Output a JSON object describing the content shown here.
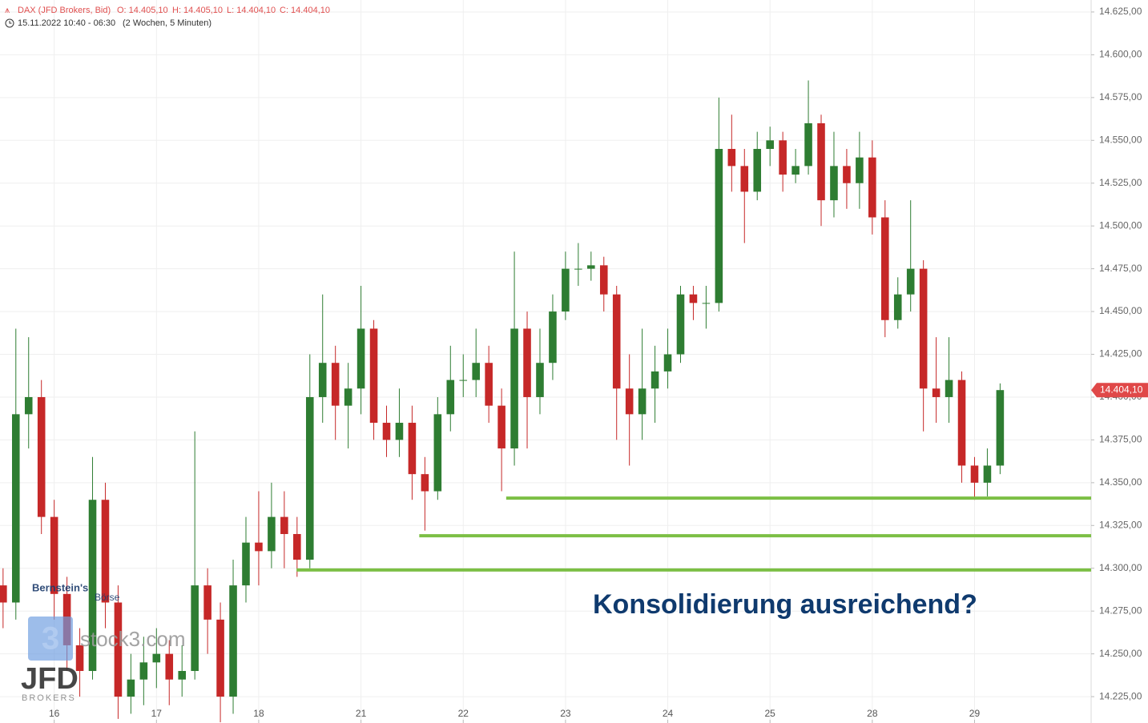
{
  "chart_data": {
    "type": "candlestick",
    "header": {
      "symbol": "DAX (JFD Brokers, Bid)",
      "open": "O: 14.405,10",
      "high": "H: 14.405,10",
      "low": "L: 14.404,10",
      "close": "C: 14.404,10",
      "range": "15.11.2022 10:40 - 06:30",
      "period": "(2 Wochen, 5 Minuten)"
    },
    "annotation": "Konsolidierung ausreichend?",
    "watermarks": {
      "bernstein": "Bernstein's",
      "boerse": "Börse",
      "stock3": "stock3.com",
      "stock3_icon": "3",
      "jfd": "JFD",
      "brokers": "BROKERS"
    },
    "last_price": {
      "value": 14404.1,
      "label": "14.404,10",
      "color": "#e04848"
    },
    "up_color": "#2e7d32",
    "down_color": "#c62828",
    "grid": true,
    "xlim": [
      -0.53,
      10.14
    ],
    "ylim": [
      14209.6,
      14632
    ],
    "xticks": [
      {
        "value": 0,
        "label": "16"
      },
      {
        "value": 1,
        "label": "17"
      },
      {
        "value": 2,
        "label": "18"
      },
      {
        "value": 3,
        "label": "21"
      },
      {
        "value": 4,
        "label": "22"
      },
      {
        "value": 5,
        "label": "23"
      },
      {
        "value": 6,
        "label": "24"
      },
      {
        "value": 7,
        "label": "25"
      },
      {
        "value": 8,
        "label": "28"
      },
      {
        "value": 9,
        "label": "29"
      }
    ],
    "yticks": [
      {
        "value": 14225,
        "label": "14.225,00"
      },
      {
        "value": 14250,
        "label": "14.250,00"
      },
      {
        "value": 14275,
        "label": "14.275,00"
      },
      {
        "value": 14300,
        "label": "14.300,00"
      },
      {
        "value": 14325,
        "label": "14.325,00"
      },
      {
        "value": 14350,
        "label": "14.350,00"
      },
      {
        "value": 14375,
        "label": "14.375,00"
      },
      {
        "value": 14400,
        "label": "14.400,00"
      },
      {
        "value": 14425,
        "label": "14.425,00"
      },
      {
        "value": 14450,
        "label": "14.450,00"
      },
      {
        "value": 14475,
        "label": "14.475,00"
      },
      {
        "value": 14500,
        "label": "14.500,00"
      },
      {
        "value": 14525,
        "label": "14.525,00"
      },
      {
        "value": 14550,
        "label": "14.550,00"
      },
      {
        "value": 14575,
        "label": "14.575,00"
      },
      {
        "value": 14600,
        "label": "14.600,00"
      },
      {
        "value": 14625,
        "label": "14.625,00"
      }
    ],
    "levels": {
      "color": "#7cbf45",
      "values": [
        14341,
        14319,
        14299
      ],
      "x_start": [
        4.42,
        3.57,
        2.37
      ]
    },
    "x": [
      -0.5,
      -0.375,
      -0.25,
      -0.125,
      0,
      0.125,
      0.25,
      0.375,
      0.5,
      0.625,
      0.75,
      0.875,
      1,
      1.125,
      1.25,
      1.375,
      1.5,
      1.625,
      1.75,
      1.875,
      2,
      2.125,
      2.25,
      2.375,
      2.5,
      2.625,
      2.75,
      2.875,
      3,
      3.125,
      3.25,
      3.375,
      3.5,
      3.625,
      3.75,
      3.875,
      4,
      4.125,
      4.25,
      4.375,
      4.5,
      4.625,
      4.75,
      4.875,
      5,
      5.125,
      5.25,
      5.375,
      5.5,
      5.625,
      5.75,
      5.875,
      6,
      6.125,
      6.25,
      6.375,
      6.5,
      6.625,
      6.75,
      6.875,
      7,
      7.125,
      7.25,
      7.375,
      7.5,
      7.625,
      7.75,
      7.875,
      8,
      8.125,
      8.25,
      8.375,
      8.5,
      8.625,
      8.75,
      8.875,
      9,
      9.125,
      9.25
    ],
    "open": [
      14290,
      14280,
      14390,
      14400,
      14330,
      14285,
      14255,
      14240,
      14340,
      14280,
      14225,
      14235,
      14245,
      14250,
      14235,
      14240,
      14290,
      14270,
      14225,
      14290,
      14315,
      14310,
      14330,
      14320,
      14305,
      14400,
      14420,
      14395,
      14405,
      14440,
      14385,
      14375,
      14385,
      14355,
      14345,
      14390,
      14410,
      14410,
      14420,
      14395,
      14370,
      14440,
      14400,
      14420,
      14450,
      14475,
      14475,
      14477,
      14460,
      14405,
      14390,
      14405,
      14415,
      14425,
      14460,
      14455,
      14455,
      14545,
      14535,
      14520,
      14545,
      14550,
      14530,
      14535,
      14560,
      14515,
      14535,
      14525,
      14540,
      14505,
      14445,
      14460,
      14475,
      14405,
      14400,
      14410,
      14360,
      14350,
      14360
    ],
    "high": [
      14300,
      14440,
      14435,
      14410,
      14340,
      14295,
      14265,
      14365,
      14350,
      14290,
      14250,
      14260,
      14265,
      14258,
      14255,
      14380,
      14300,
      14280,
      14305,
      14330,
      14345,
      14350,
      14345,
      14330,
      14425,
      14460,
      14430,
      14420,
      14465,
      14445,
      14395,
      14405,
      14395,
      14365,
      14400,
      14430,
      14425,
      14440,
      14430,
      14405,
      14485,
      14450,
      14440,
      14460,
      14485,
      14490,
      14485,
      14482,
      14465,
      14425,
      14440,
      14430,
      14440,
      14465,
      14465,
      14465,
      14575,
      14565,
      14545,
      14555,
      14558,
      14555,
      14545,
      14585,
      14565,
      14555,
      14545,
      14555,
      14550,
      14515,
      14470,
      14515,
      14480,
      14435,
      14435,
      14415,
      14365,
      14370,
      14408
    ],
    "low": [
      14265,
      14270,
      14370,
      14320,
      14270,
      14240,
      14225,
      14235,
      14265,
      14212,
      14215,
      14220,
      14230,
      14220,
      14225,
      14235,
      14250,
      14210,
      14215,
      14280,
      14290,
      14300,
      14300,
      14295,
      14300,
      14385,
      14375,
      14370,
      14390,
      14375,
      14365,
      14365,
      14340,
      14322,
      14340,
      14380,
      14400,
      14400,
      14385,
      14345,
      14360,
      14370,
      14390,
      14410,
      14445,
      14465,
      14468,
      14450,
      14375,
      14360,
      14375,
      14385,
      14405,
      14420,
      14445,
      14440,
      14450,
      14520,
      14490,
      14515,
      14535,
      14520,
      14525,
      14530,
      14500,
      14505,
      14510,
      14510,
      14495,
      14435,
      14440,
      14450,
      14380,
      14385,
      14385,
      14350,
      14340,
      14342,
      14355
    ],
    "close": [
      14280,
      14390,
      14400,
      14330,
      14285,
      14255,
      14240,
      14340,
      14280,
      14225,
      14235,
      14245,
      14250,
      14235,
      14240,
      14290,
      14270,
      14225,
      14290,
      14315,
      14310,
      14330,
      14320,
      14305,
      14400,
      14420,
      14395,
      14405,
      14440,
      14385,
      14375,
      14385,
      14355,
      14345,
      14390,
      14410,
      14410,
      14420,
      14395,
      14370,
      14440,
      14400,
      14420,
      14450,
      14475,
      14475,
      14477,
      14460,
      14405,
      14390,
      14405,
      14415,
      14425,
      14460,
      14455,
      14455,
      14545,
      14535,
      14520,
      14545,
      14550,
      14530,
      14535,
      14560,
      14515,
      14535,
      14525,
      14540,
      14505,
      14445,
      14460,
      14475,
      14405,
      14400,
      14410,
      14360,
      14350,
      14360,
      14404.1
    ]
  }
}
